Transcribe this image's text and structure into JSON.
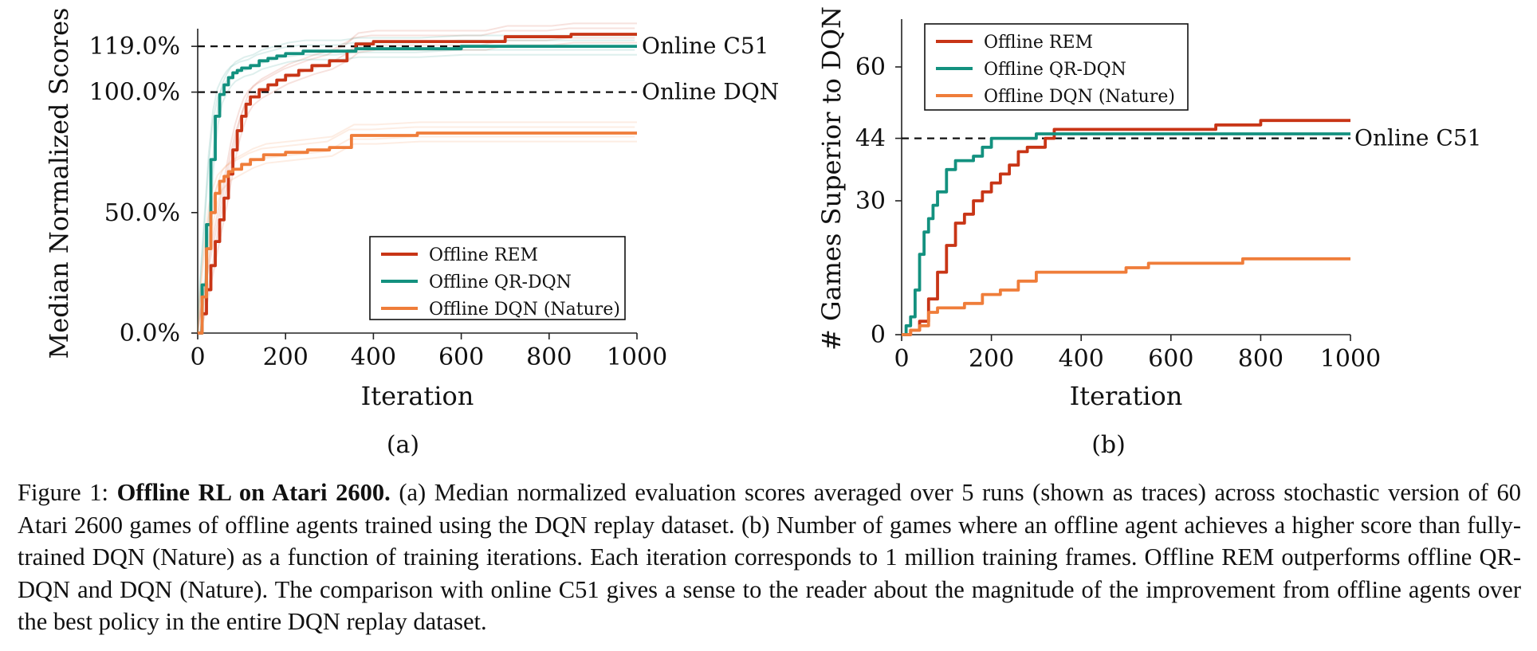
{
  "chart_data": [
    {
      "type": "line",
      "subfigure_label": "(a)",
      "xlabel": "Iteration",
      "ylabel": "Median Normalized Scores",
      "xlim": [
        0,
        1000
      ],
      "ylim": [
        0,
        125
      ],
      "xticks": [
        "0",
        "200",
        "400",
        "600",
        "800",
        "1000"
      ],
      "yticks": [
        {
          "value": 0,
          "label": "0.0%"
        },
        {
          "value": 50,
          "label": "50.0%"
        },
        {
          "value": 100,
          "label": "100.0%"
        },
        {
          "value": 119,
          "label": "119.0%"
        }
      ],
      "reference_lines": [
        {
          "y": 119,
          "label": "Online C51"
        },
        {
          "y": 100,
          "label": "Online DQN"
        }
      ],
      "legend_position": "lower-right",
      "series": [
        {
          "name": "Offline REM",
          "color": "#c83516",
          "x": [
            0,
            10,
            20,
            30,
            40,
            50,
            60,
            70,
            80,
            90,
            100,
            110,
            120,
            140,
            160,
            180,
            200,
            230,
            260,
            300,
            340,
            360,
            400,
            450,
            500,
            550,
            600,
            650,
            700,
            750,
            800,
            850,
            900,
            950,
            1000
          ],
          "y": [
            0,
            8,
            18,
            28,
            38,
            47,
            56,
            66,
            76,
            84,
            90,
            95,
            98,
            101,
            103,
            105,
            107,
            109,
            111,
            113,
            117,
            120,
            121,
            121,
            121,
            121,
            121,
            121,
            123,
            123,
            123,
            124,
            124,
            124,
            124
          ]
        },
        {
          "name": "Offline QR-DQN",
          "color": "#13917f",
          "x": [
            0,
            10,
            20,
            30,
            40,
            50,
            60,
            70,
            80,
            90,
            100,
            120,
            140,
            160,
            180,
            200,
            240,
            280,
            320,
            360,
            400,
            500,
            600,
            700,
            800,
            900,
            1000
          ],
          "y": [
            0,
            20,
            45,
            72,
            90,
            99,
            103,
            106,
            108,
            109,
            110,
            111,
            113,
            114,
            115,
            116,
            117,
            117,
            117,
            118,
            118,
            118,
            119,
            119,
            119,
            119,
            119
          ]
        },
        {
          "name": "Offline DQN (Nature)",
          "color": "#ef7d3a",
          "x": [
            0,
            10,
            20,
            30,
            40,
            50,
            60,
            70,
            80,
            100,
            120,
            150,
            200,
            250,
            300,
            350,
            400,
            500,
            600,
            700,
            800,
            900,
            1000
          ],
          "y": [
            0,
            15,
            35,
            50,
            58,
            63,
            65,
            67,
            68,
            70,
            72,
            74,
            75,
            76,
            77,
            82,
            82,
            83,
            83,
            83,
            83,
            83,
            83
          ]
        }
      ]
    },
    {
      "type": "line",
      "subfigure_label": "(b)",
      "xlabel": "Iteration",
      "ylabel": "# Games Superior to DQN",
      "xlim": [
        0,
        1000
      ],
      "ylim": [
        0,
        70
      ],
      "xticks": [
        "0",
        "200",
        "400",
        "600",
        "800",
        "1000"
      ],
      "yticks": [
        {
          "value": 0,
          "label": "0"
        },
        {
          "value": 30,
          "label": "30"
        },
        {
          "value": 44,
          "label": "44"
        },
        {
          "value": 60,
          "label": "60"
        }
      ],
      "reference_lines": [
        {
          "y": 44,
          "label": "Online C51"
        }
      ],
      "legend_position": "upper-left",
      "series": [
        {
          "name": "Offline REM",
          "color": "#c83516",
          "x": [
            0,
            20,
            40,
            60,
            80,
            100,
            120,
            140,
            160,
            180,
            200,
            220,
            240,
            260,
            280,
            300,
            320,
            340,
            400,
            500,
            600,
            700,
            800,
            900,
            1000
          ],
          "y": [
            0,
            1,
            3,
            8,
            14,
            20,
            25,
            27,
            30,
            32,
            34,
            36,
            38,
            41,
            42,
            42,
            44,
            46,
            46,
            46,
            46,
            47,
            48,
            48,
            48
          ]
        },
        {
          "name": "Offline QR-DQN",
          "color": "#13917f",
          "x": [
            0,
            10,
            20,
            30,
            40,
            50,
            60,
            70,
            80,
            100,
            120,
            140,
            160,
            180,
            200,
            250,
            300,
            400,
            500,
            600,
            700,
            800,
            900,
            1000
          ],
          "y": [
            0,
            2,
            4,
            10,
            18,
            23,
            26,
            29,
            32,
            37,
            39,
            39,
            40,
            42,
            44,
            44,
            45,
            45,
            45,
            45,
            45,
            45,
            45,
            45
          ]
        },
        {
          "name": "Offline DQN (Nature)",
          "color": "#ef7d3a",
          "x": [
            0,
            20,
            40,
            60,
            80,
            100,
            140,
            180,
            220,
            260,
            300,
            400,
            500,
            550,
            600,
            700,
            760,
            800,
            900,
            1000
          ],
          "y": [
            0,
            1,
            2,
            5,
            6,
            6,
            7,
            9,
            10,
            12,
            14,
            14,
            15,
            16,
            16,
            16,
            17,
            17,
            17,
            17
          ]
        }
      ]
    }
  ],
  "caption": {
    "figure_label": "Figure 1:",
    "title": "Offline RL on Atari 2600.",
    "body": "(a) Median normalized evaluation scores averaged over 5 runs (shown as traces) across stochastic version of 60 Atari 2600 games of offline agents trained using the DQN replay dataset. (b) Number of games where an offline agent achieves a higher score than fully-trained DQN (Nature) as a function of training iterations. Each iteration corresponds to 1 million training frames. Offline REM outperforms offline QR-DQN and DQN (Nature). The comparison with online C51 gives a sense to the reader about the magnitude of the improvement from offline agents over the best policy in the entire DQN replay dataset."
  }
}
